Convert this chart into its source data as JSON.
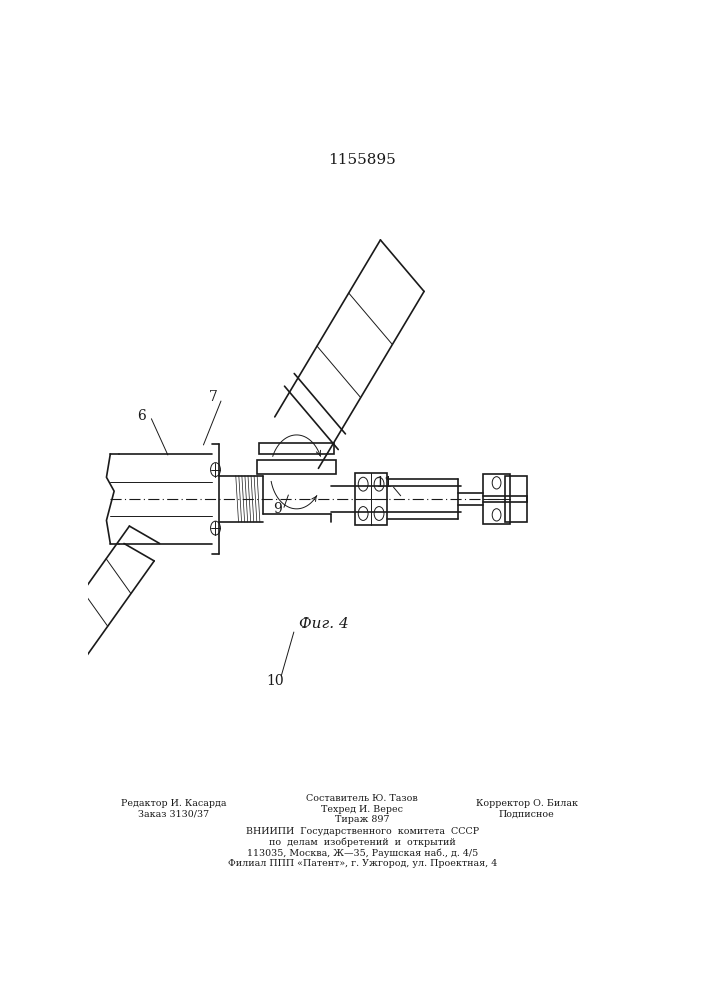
{
  "patent_number": "1155895",
  "figure_label": "Фиг. 4",
  "bg_color": "#ffffff",
  "line_color": "#1a1a1a",
  "left_editor": "Редактор И. Касарда",
  "left_order": "Заказ 3130/37",
  "center_line1": "Составитель Ю. Тазов",
  "center_line2": "Техред И. Верес",
  "center_line3": "Тираж 897",
  "center_line4": "ВНИИПИ  Государственного  комитета  СССР",
  "center_line5": "по  делам  изобретений  и  открытий",
  "center_line6": "113035, Москва, Ж—35, Раушская наб., д. 4/5",
  "center_line7": "Филиал ППП «Патент», г. Ужгород, ул. Проектная, 4",
  "right_line1": "Корректор О. Билак",
  "right_line2": "Подписное"
}
